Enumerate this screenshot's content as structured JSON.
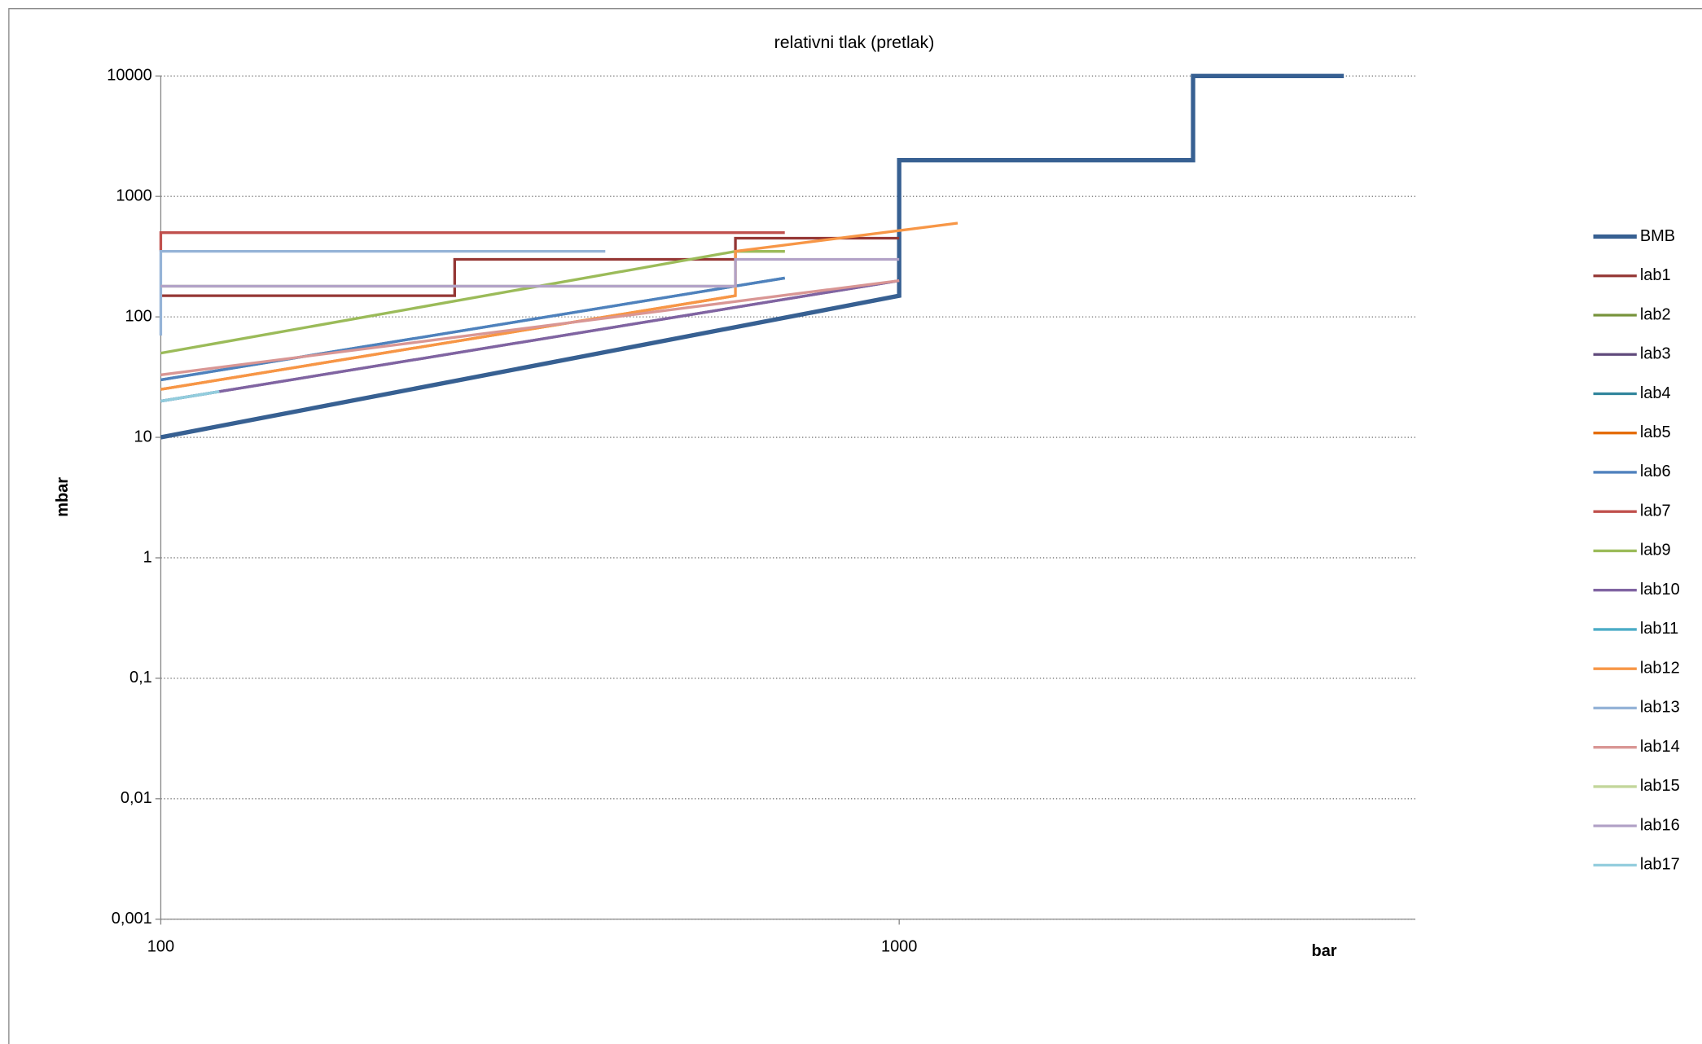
{
  "chart_data": {
    "type": "line",
    "title": "relativni tlak (pretlak)",
    "x_label": "bar",
    "y_label": "mbar",
    "x_log": true,
    "y_log": true,
    "grid": true,
    "legend": "right",
    "xlim": [
      100,
      5000
    ],
    "xticks": [
      100,
      1000
    ],
    "ylim": [
      0.001,
      10000
    ],
    "yticks": [
      {
        "value": 0.001,
        "label": "0,001"
      },
      {
        "value": 0.01,
        "label": "0,01"
      },
      {
        "value": 0.1,
        "label": "0,1"
      },
      1,
      10,
      100,
      1000,
      10000
    ],
    "series": [
      {
        "name": "BMB",
        "color": "#376092",
        "x": [
          100,
          1000,
          1000,
          2500,
          2500,
          4000
        ],
        "values": [
          10,
          150,
          2000,
          2000,
          10000,
          10000
        ]
      },
      {
        "name": "lab1",
        "color": "#953735",
        "x": [
          100,
          250,
          250,
          600,
          600,
          1000
        ],
        "values": [
          150,
          150,
          300,
          300,
          450,
          450
        ]
      },
      {
        "name": "lab2",
        "color": "#77933c",
        "x": [
          600,
          700
        ],
        "values": [
          350,
          350
        ]
      },
      {
        "name": "lab3",
        "color": "#604a7b",
        "x": [
          100,
          1000
        ],
        "values": [
          20,
          200
        ]
      },
      {
        "name": "lab4",
        "color": "#31859c",
        "x": [
          100,
          700
        ],
        "values": [
          30,
          210
        ]
      },
      {
        "name": "lab5",
        "color": "#e46c0a",
        "x": [
          100,
          600
        ],
        "values": [
          25,
          150
        ]
      },
      {
        "name": "lab6",
        "color": "#4f81bd",
        "x": [
          100,
          700
        ],
        "values": [
          30,
          210
        ]
      },
      {
        "name": "lab7",
        "color": "#c0504d",
        "x": [
          100,
          100,
          700
        ],
        "values": [
          350,
          500,
          500
        ]
      },
      {
        "name": "lab9",
        "color": "#9bbb59",
        "x": [
          100,
          600,
          700
        ],
        "values": [
          50,
          350,
          350
        ]
      },
      {
        "name": "lab10",
        "color": "#8064a2",
        "x": [
          100,
          1000
        ],
        "values": [
          20,
          200
        ]
      },
      {
        "name": "lab11",
        "color": "#4bacc6",
        "x": [
          100,
          120
        ],
        "values": [
          20,
          24
        ]
      },
      {
        "name": "lab12",
        "color": "#f79646",
        "x": [
          100,
          600,
          600,
          1200
        ],
        "values": [
          25,
          150,
          350,
          600
        ]
      },
      {
        "name": "lab13",
        "color": "#95b3d7",
        "x": [
          100,
          100,
          400
        ],
        "values": [
          70,
          350,
          350
        ]
      },
      {
        "name": "lab14",
        "color": "#d99694",
        "x": [
          100,
          1000
        ],
        "values": [
          33,
          200
        ]
      },
      {
        "name": "lab15",
        "color": "#c3d69b",
        "x": [
          100,
          600
        ],
        "values": [
          180,
          180
        ]
      },
      {
        "name": "lab16",
        "color": "#b2a2c7",
        "x": [
          100,
          600,
          600,
          1000
        ],
        "values": [
          180,
          180,
          300,
          300
        ]
      },
      {
        "name": "lab17",
        "color": "#93cddd",
        "x": [
          100,
          120
        ],
        "values": [
          20,
          24
        ]
      }
    ]
  }
}
